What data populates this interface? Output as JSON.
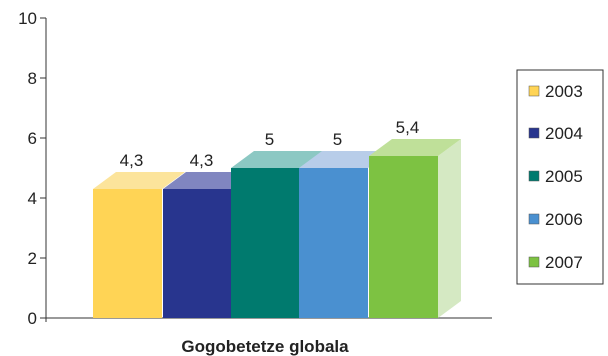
{
  "chart_data": {
    "type": "bar",
    "title": "",
    "xlabel": "Gogobetetze globala",
    "ylabel": "",
    "ylim": [
      0,
      10
    ],
    "yticks": [
      "0",
      "2",
      "4",
      "6",
      "8",
      "10"
    ],
    "grid": false,
    "legend_position": "right",
    "categories": [
      "Gogobetetze globala"
    ],
    "series": [
      {
        "name": "2003",
        "values": [
          4.3
        ],
        "label": "4,3",
        "color": "#FFD455"
      },
      {
        "name": "2004",
        "values": [
          4.3
        ],
        "label": "4,3",
        "color": "#28358E"
      },
      {
        "name": "2005",
        "values": [
          5.0
        ],
        "label": "5",
        "color": "#007A6E"
      },
      {
        "name": "2006",
        "values": [
          5.0
        ],
        "label": "5",
        "color": "#4A90D0"
      },
      {
        "name": "2007",
        "values": [
          5.4
        ],
        "label": "5,4",
        "color": "#7DC242"
      }
    ]
  },
  "colors": {
    "depth_2003": "#FCE49B",
    "depth_2004": "#8086C0",
    "depth_2005": "#8CC8C3",
    "depth_2006": "#B8CDE9",
    "depth_2007": "#BFE099",
    "side_wall": "#D5E9C3",
    "axis": "#333333"
  }
}
